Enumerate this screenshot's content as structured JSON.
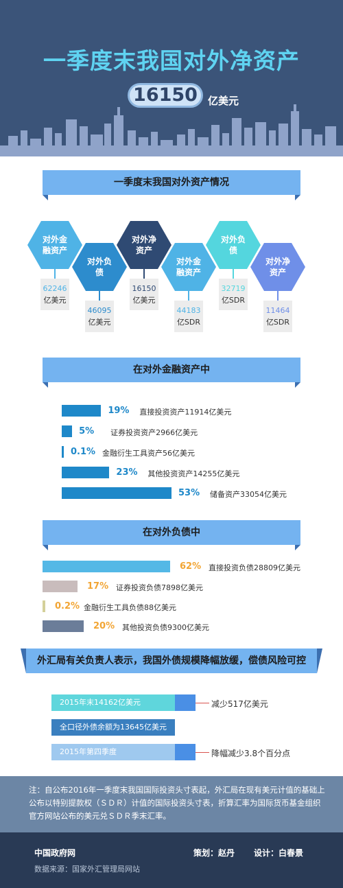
{
  "header": {
    "title": "一季度末我国对外净资产",
    "total_value": "16150",
    "total_unit": "亿美元"
  },
  "section1": {
    "title": "一季度末我国对外资产情况",
    "hexes": [
      {
        "label": "对外金融资产",
        "value": "62246",
        "unit": "亿美元",
        "color": "#4fb3e6"
      },
      {
        "label": "对外负债",
        "value": "46095",
        "unit": "亿美元",
        "color": "#2d8ccd"
      },
      {
        "label": "对外净资产",
        "value": "16150",
        "unit": "亿美元",
        "color": "#2f4a73"
      },
      {
        "label": "对外金融资产",
        "value": "44183",
        "unit": "亿SDR",
        "color": "#4fb3e6"
      },
      {
        "label": "对外负债",
        "value": "32719",
        "unit": "亿SDR",
        "color": "#54d6de"
      },
      {
        "label": "对外净资产",
        "value": "11464",
        "unit": "亿SDR",
        "color": "#6f8fe8"
      }
    ]
  },
  "section2": {
    "title": "在对外金融资产中",
    "bars": [
      {
        "pct": "19%",
        "label": "直接投资资产11914亿美元",
        "value": 19
      },
      {
        "pct": "5%",
        "label": "证券投资资产2966亿美元",
        "value": 5
      },
      {
        "pct": "0.1%",
        "label": "金融衍生工具资产56亿美元",
        "value": 0.1
      },
      {
        "pct": "23%",
        "label": "其他投资资产14255亿美元",
        "value": 23
      },
      {
        "pct": "53%",
        "label": "储备资产33054亿美元",
        "value": 53
      }
    ],
    "bar_color": "#1e88c9",
    "pct_color": "#1e88c9"
  },
  "section3": {
    "title": "在对外负债中",
    "bars": [
      {
        "pct": "62%",
        "label": "直接投资负债28809亿美元",
        "value": 62,
        "color": "#54b8e6"
      },
      {
        "pct": "17%",
        "label": "证券投资负债7898亿美元",
        "value": 17,
        "color": "#c9bcbc"
      },
      {
        "pct": "0.2%",
        "label": "金融衍生工具负债88亿美元",
        "value": 0.2,
        "color": "#d4d09a"
      },
      {
        "pct": "20%",
        "label": "其他投资负债9300亿美元",
        "value": 20,
        "color": "#6b7d99"
      }
    ],
    "pct_color": "#f2a534"
  },
  "section4": {
    "quote": "外汇局有关负责人表示，我国外债规模降幅放缓，偿债风险可控",
    "debt_bars": [
      {
        "label": "2015年末14162亿美元",
        "note": "减少517亿美元"
      },
      {
        "label": "全口径外债余额为13645亿美元",
        "note": ""
      },
      {
        "label": "2015年第四季度",
        "note": "降幅减少3.8个百分点"
      }
    ]
  },
  "footnote": "注：自公布2016年一季度末我国国际投资头寸表起，外汇局在现有美元计值的基础上公布以特别提款权（ＳＤＲ）计值的国际投资头寸表，折算汇率为国际货币基金组织官方网站公布的美元兑ＳＤＲ季末汇率。",
  "footer": {
    "site": "中国政府网",
    "source": "数据来源：国家外汇管理局网站",
    "planner": "策划：赵丹",
    "designer": "设计：白春景"
  }
}
